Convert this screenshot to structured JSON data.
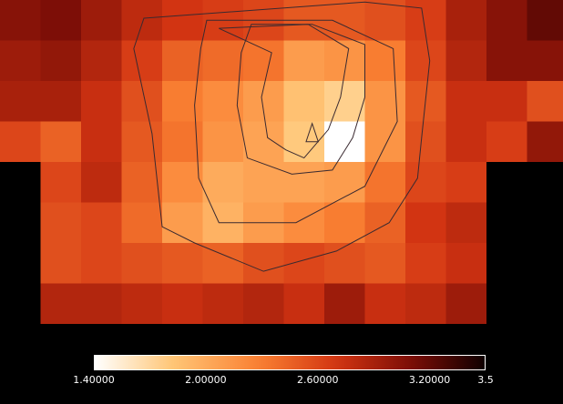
{
  "chart_data": {
    "type": "heatmap",
    "title": "",
    "xlabel": "",
    "ylabel": "",
    "colormap": "hot_r",
    "color_range": [
      1.4,
      3.5
    ],
    "nodata_color": "#000000",
    "colorbar_ticks": [
      1.4,
      2.0,
      2.6,
      3.2,
      3.5
    ],
    "colorbar_tick_labels": [
      "1.40000",
      "2.00000",
      "2.60000",
      "3.20000",
      "3.5"
    ],
    "grid": [
      [
        3.05,
        3.1,
        2.95,
        2.8,
        2.7,
        2.65,
        2.6,
        2.5,
        2.5,
        2.55,
        2.65,
        2.9,
        3.05,
        3.2
      ],
      [
        2.95,
        3.0,
        2.85,
        2.65,
        2.45,
        2.4,
        2.35,
        2.1,
        2.15,
        2.3,
        2.6,
        2.85,
        3.05,
        3.05
      ],
      [
        2.9,
        2.9,
        2.75,
        2.55,
        2.3,
        2.2,
        2.1,
        1.85,
        1.75,
        2.15,
        2.5,
        2.75,
        2.75,
        2.55
      ],
      [
        2.6,
        2.45,
        2.75,
        2.5,
        2.35,
        2.15,
        2.05,
        1.8,
        1.4,
        2.15,
        2.55,
        2.75,
        2.65,
        3.0
      ],
      [
        null,
        2.6,
        2.8,
        2.45,
        2.2,
        2.0,
        2.05,
        2.05,
        2.1,
        2.35,
        2.6,
        2.65,
        null,
        null
      ],
      [
        null,
        2.55,
        2.6,
        2.4,
        2.1,
        1.95,
        2.1,
        2.2,
        2.3,
        2.45,
        2.7,
        2.8,
        null,
        null
      ],
      [
        null,
        2.55,
        2.6,
        2.55,
        2.5,
        2.45,
        2.55,
        2.6,
        2.55,
        2.5,
        2.65,
        2.75,
        null,
        null
      ],
      [
        null,
        2.85,
        2.85,
        2.8,
        2.75,
        2.8,
        2.85,
        2.75,
        2.95,
        2.75,
        2.8,
        2.95,
        null,
        null
      ],
      [
        null,
        null,
        null,
        null,
        null,
        null,
        null,
        null,
        null,
        null,
        null,
        null,
        null,
        null
      ]
    ],
    "contours": [
      [
        [
          5.4,
          0.7
        ],
        [
          7.6,
          0.6
        ],
        [
          8.6,
          1.2
        ],
        [
          8.4,
          2.4
        ],
        [
          8.1,
          3.2
        ],
        [
          7.5,
          3.9
        ],
        [
          7.05,
          3.7
        ],
        [
          6.6,
          3.4
        ],
        [
          6.45,
          2.4
        ],
        [
          6.7,
          1.3
        ]
      ],
      [
        [
          7.55,
          3.5
        ],
        [
          7.85,
          3.5
        ],
        [
          7.7,
          3.05
        ]
      ],
      [
        [
          6.2,
          0.6
        ],
        [
          7.7,
          0.6
        ],
        [
          9.0,
          1.1
        ],
        [
          9.0,
          2.4
        ],
        [
          8.7,
          3.4
        ],
        [
          8.2,
          4.2
        ],
        [
          7.2,
          4.3
        ],
        [
          6.1,
          3.9
        ],
        [
          5.85,
          2.6
        ],
        [
          5.95,
          1.3
        ]
      ],
      [
        [
          5.1,
          0.5
        ],
        [
          8.2,
          0.5
        ],
        [
          9.7,
          1.2
        ],
        [
          9.8,
          3.0
        ],
        [
          9.0,
          4.6
        ],
        [
          7.3,
          5.5
        ],
        [
          5.4,
          5.5
        ],
        [
          4.9,
          4.4
        ],
        [
          4.8,
          2.6
        ],
        [
          4.95,
          1.2
        ]
      ],
      [
        [
          3.55,
          0.45
        ],
        [
          9.0,
          0.05
        ],
        [
          10.4,
          0.2
        ],
        [
          10.6,
          1.5
        ],
        [
          10.4,
          3.4
        ],
        [
          10.3,
          4.4
        ],
        [
          9.6,
          5.5
        ],
        [
          8.3,
          6.2
        ],
        [
          6.5,
          6.7
        ],
        [
          4.8,
          6.0
        ],
        [
          4.0,
          5.6
        ],
        [
          3.75,
          3.3
        ],
        [
          3.3,
          1.2
        ]
      ]
    ]
  }
}
